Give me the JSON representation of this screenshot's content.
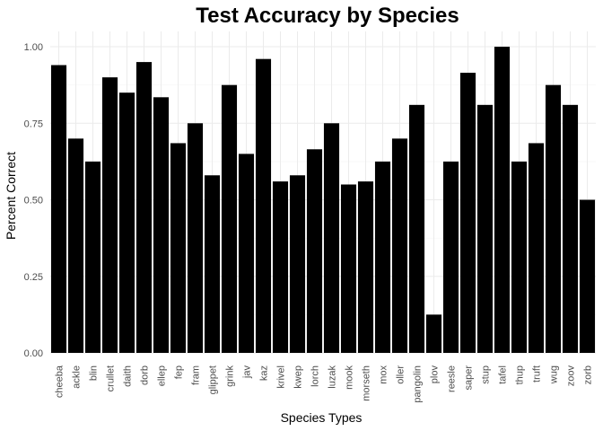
{
  "chart_data": {
    "type": "bar",
    "title": "Test Accuracy by Species",
    "xlabel": "Species Types",
    "ylabel": "Percent Correct",
    "ylim": [
      0,
      1.05
    ],
    "yticks": [
      "0.00",
      "0.25",
      "0.50",
      "0.75",
      "1.00"
    ],
    "grid": true,
    "bar_color": "#000000",
    "categories": [
      "cheeba",
      "ackle",
      "blin",
      "crullet",
      "daith",
      "dorb",
      "ellep",
      "fep",
      "fram",
      "glippet",
      "grink",
      "jav",
      "kaz",
      "krivel",
      "kwep",
      "lorch",
      "luzak",
      "mook",
      "morseth",
      "mox",
      "oller",
      "pangolin",
      "plov",
      "reesle",
      "saper",
      "stup",
      "tafel",
      "thup",
      "truft",
      "wug",
      "zoov",
      "zorb"
    ],
    "values": [
      0.94,
      0.7,
      0.625,
      0.9,
      0.85,
      0.95,
      0.835,
      0.685,
      0.75,
      0.58,
      0.875,
      0.65,
      0.96,
      0.56,
      0.58,
      0.665,
      0.75,
      0.55,
      0.56,
      0.625,
      0.7,
      0.81,
      0.125,
      0.625,
      0.915,
      0.81,
      1.0,
      0.625,
      0.685,
      0.875,
      0.81,
      0.5
    ]
  }
}
